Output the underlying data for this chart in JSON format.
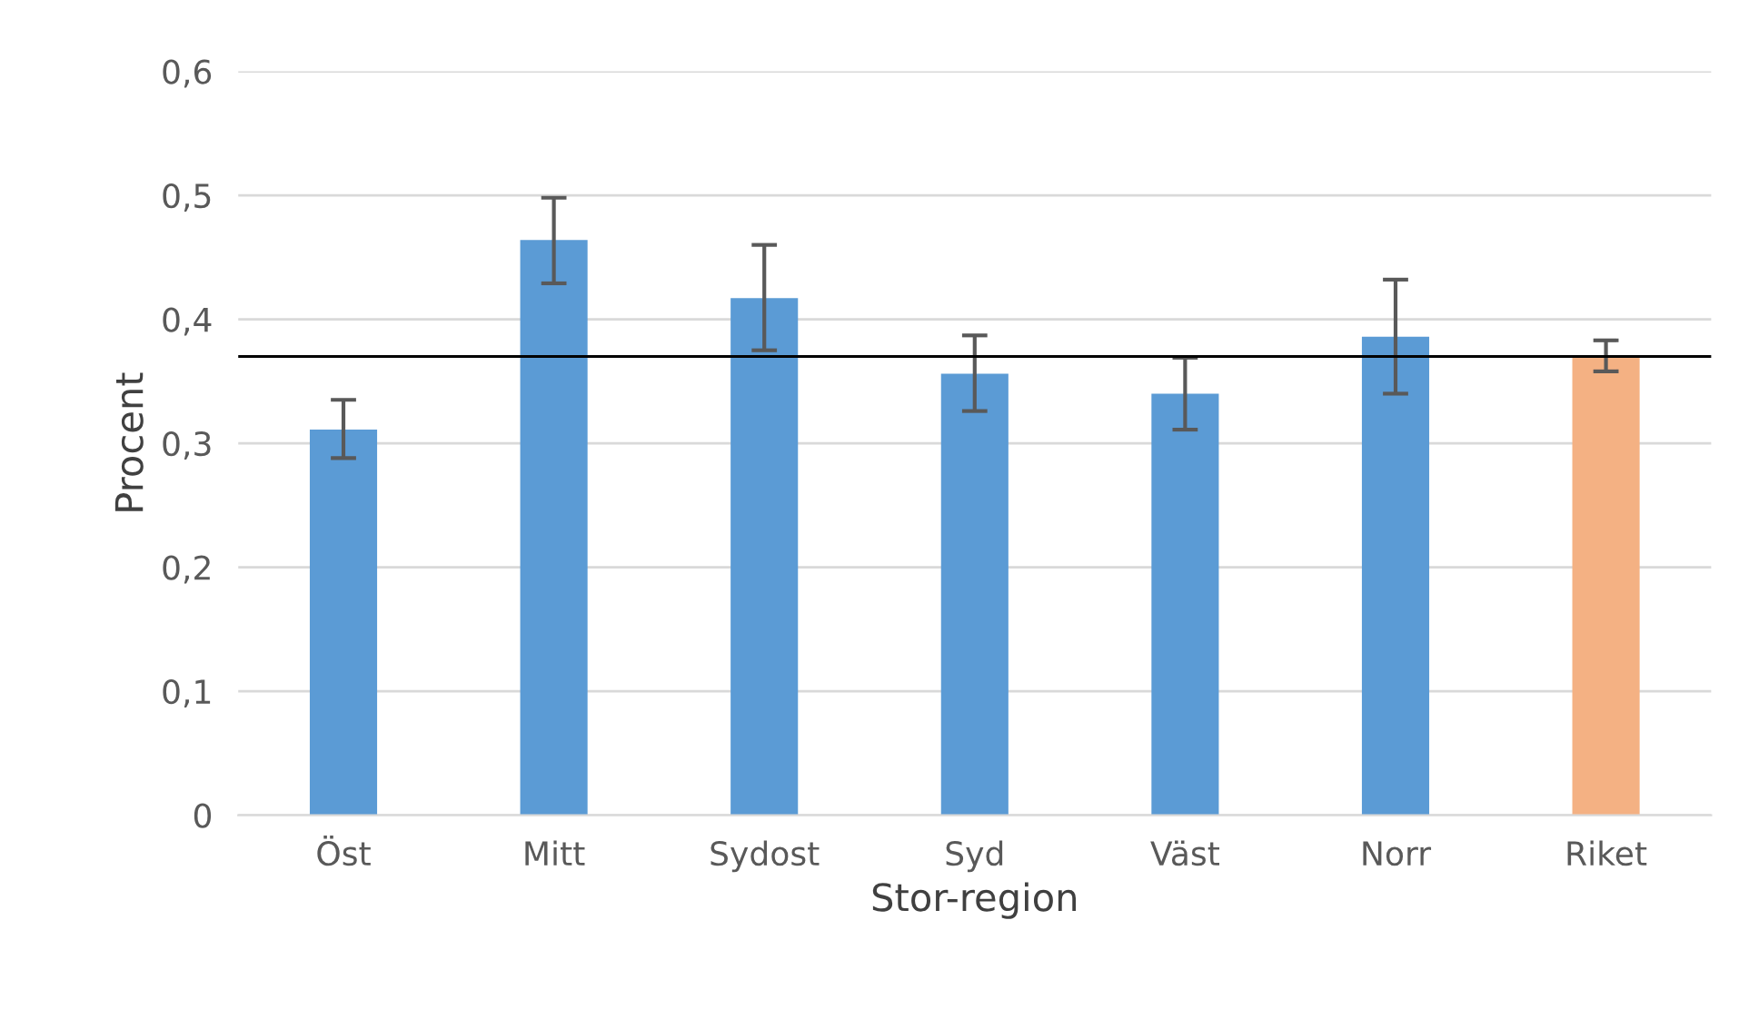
{
  "chart_data": {
    "type": "bar",
    "xlabel": "Stor-region",
    "ylabel": "Procent",
    "categories": [
      "Öst",
      "Mitt",
      "Sydost",
      "Syd",
      "Väst",
      "Norr",
      "Riket"
    ],
    "values": [
      0.311,
      0.464,
      0.417,
      0.356,
      0.34,
      0.386,
      0.371
    ],
    "colors": [
      "#5b9bd5",
      "#5b9bd5",
      "#5b9bd5",
      "#5b9bd5",
      "#5b9bd5",
      "#5b9bd5",
      "#f4b183"
    ],
    "errors": [
      [
        0.288,
        0.335
      ],
      [
        0.429,
        0.498
      ],
      [
        0.375,
        0.46
      ],
      [
        0.326,
        0.387
      ],
      [
        0.311,
        0.369
      ],
      [
        0.34,
        0.432
      ],
      [
        0.358,
        0.383
      ]
    ],
    "ylim": [
      0,
      0.6
    ],
    "yticks": [
      {
        "value": 0,
        "label": "0"
      },
      {
        "value": 0.1,
        "label": "0,1"
      },
      {
        "value": 0.2,
        "label": "0,2"
      },
      {
        "value": 0.3,
        "label": "0,3"
      },
      {
        "value": 0.4,
        "label": "0,4"
      },
      {
        "value": 0.5,
        "label": "0,5"
      },
      {
        "value": 0.6,
        "label": "0,6"
      }
    ],
    "grid": "y",
    "ref_lines": [
      {
        "axis": "y",
        "value": 0.37,
        "color": "#000000",
        "line_style": "solid"
      }
    ]
  }
}
